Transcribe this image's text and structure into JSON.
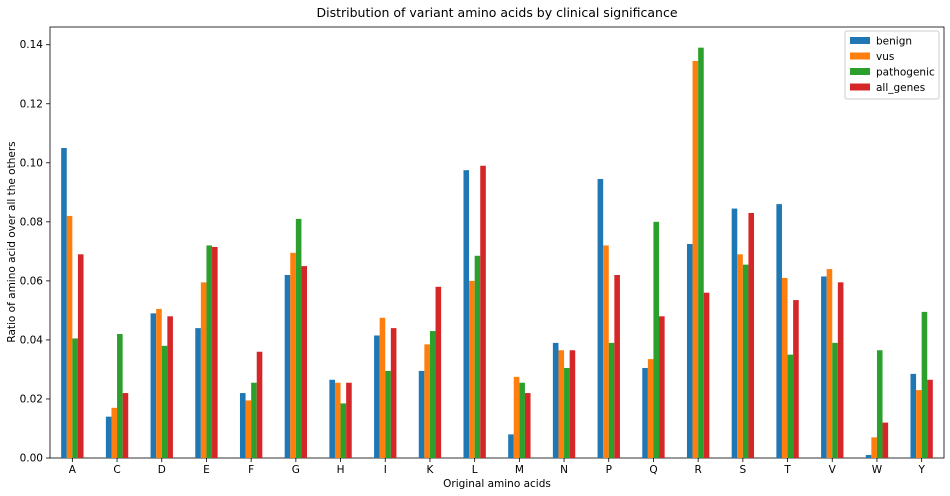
{
  "chart_data": {
    "type": "bar",
    "title": "Distribution of variant amino acids by clinical significance",
    "xlabel": "Original amino acids",
    "ylabel": "Ratio of amino acid over all the others",
    "ylim": [
      0,
      0.146
    ],
    "yticks": [
      "0.00",
      "0.02",
      "0.04",
      "0.06",
      "0.08",
      "0.10",
      "0.12",
      "0.14"
    ],
    "grid": false,
    "legend_position": "top-right",
    "categories": [
      "A",
      "C",
      "D",
      "E",
      "F",
      "G",
      "H",
      "I",
      "K",
      "L",
      "M",
      "N",
      "P",
      "Q",
      "R",
      "S",
      "T",
      "V",
      "W",
      "Y"
    ],
    "series": [
      {
        "name": "benign",
        "color": "#1f77b4",
        "values": [
          0.105,
          0.014,
          0.049,
          0.044,
          0.022,
          0.062,
          0.0265,
          0.0415,
          0.0295,
          0.0975,
          0.008,
          0.039,
          0.0945,
          0.0305,
          0.0725,
          0.0845,
          0.086,
          0.0615,
          0.001,
          0.0285
        ]
      },
      {
        "name": "vus",
        "color": "#ff7f0e",
        "values": [
          0.082,
          0.017,
          0.0505,
          0.0595,
          0.0195,
          0.0695,
          0.0255,
          0.0475,
          0.0385,
          0.06,
          0.0275,
          0.0365,
          0.072,
          0.0335,
          0.1345,
          0.069,
          0.061,
          0.064,
          0.007,
          0.023
        ]
      },
      {
        "name": "pathogenic",
        "color": "#2ca02c",
        "values": [
          0.0405,
          0.042,
          0.038,
          0.072,
          0.0255,
          0.081,
          0.0185,
          0.0295,
          0.043,
          0.0685,
          0.0255,
          0.0305,
          0.039,
          0.08,
          0.139,
          0.0655,
          0.035,
          0.039,
          0.0365,
          0.0495
        ]
      },
      {
        "name": "all_genes",
        "color": "#d62728",
        "values": [
          0.069,
          0.022,
          0.048,
          0.0715,
          0.036,
          0.065,
          0.0255,
          0.044,
          0.058,
          0.099,
          0.022,
          0.0365,
          0.062,
          0.048,
          0.056,
          0.083,
          0.0535,
          0.0595,
          0.012,
          0.0265
        ]
      }
    ]
  }
}
